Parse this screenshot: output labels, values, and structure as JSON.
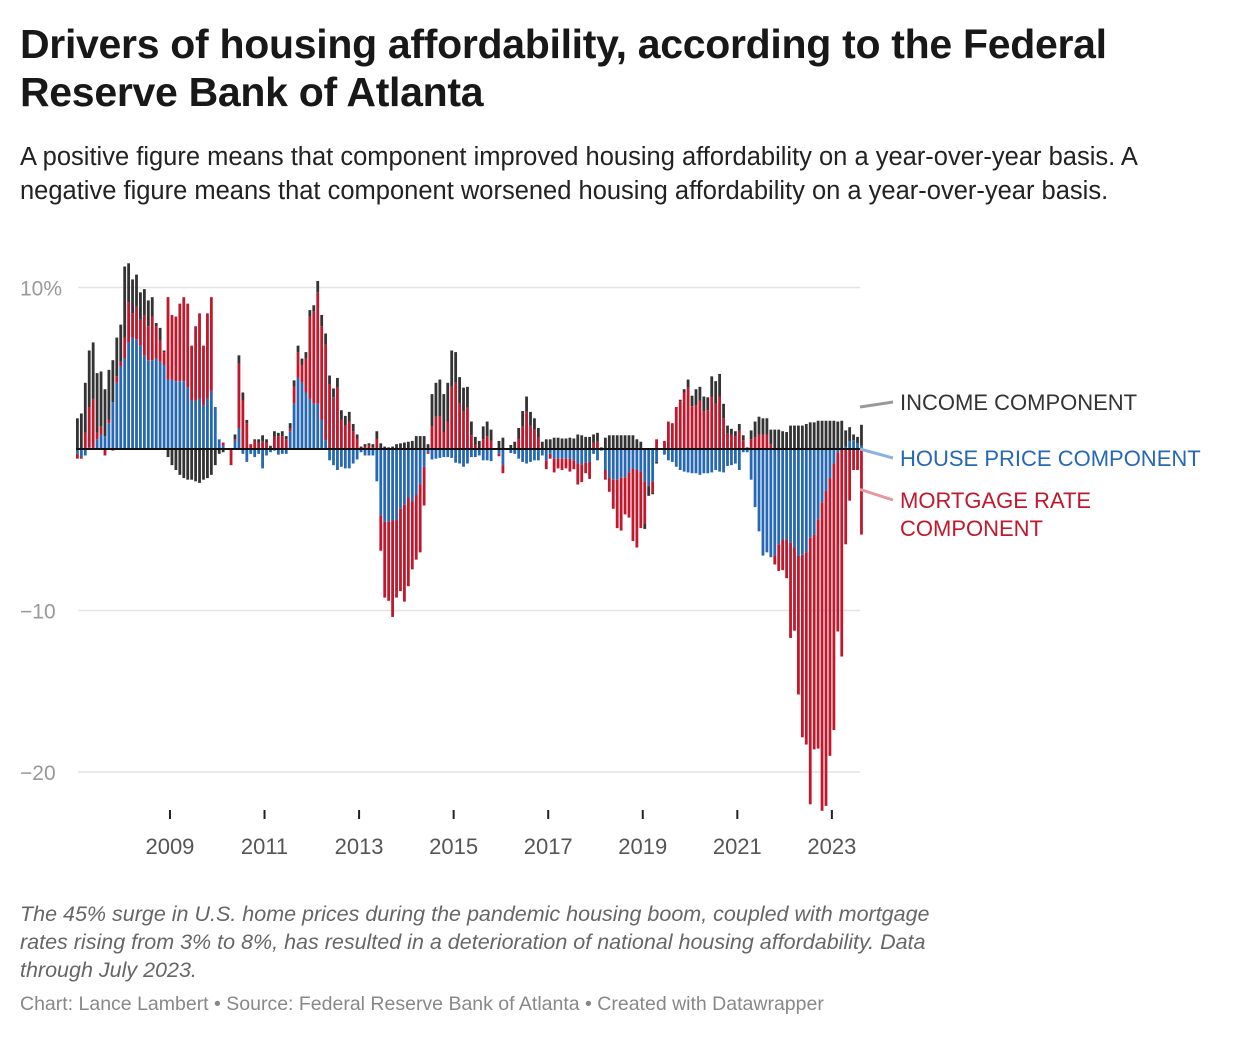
{
  "title": "Drivers of housing affordability, according to the Federal Reserve Bank of Atlanta",
  "subtitle": "A positive figure means that component improved housing affordability on a year-over-year basis. A negative figure means that component worsened housing affordability on a year-over-year basis.",
  "note": "The 45% surge in U.S. home prices during the pandemic housing boom, coupled with mortgage rates rising from 3% to 8%, has resulted in a deterioration of national housing affordability. Data through July 2023.",
  "byline": "Chart: Lance Lambert • Source: Federal Reserve Bank of Atlanta • Created with Datawrapper",
  "chart_data": {
    "type": "bar",
    "stacked": true,
    "period_start": "2007-01",
    "frequency": "monthly",
    "ylim": [
      -22.5,
      11.5
    ],
    "y_ticks": [
      {
        "value": 10,
        "label": "10%"
      },
      {
        "value": -10,
        "label": "−10"
      },
      {
        "value": -20,
        "label": "−20"
      }
    ],
    "x_ticks": [
      "2009",
      "2011",
      "2013",
      "2015",
      "2017",
      "2019",
      "2021",
      "2023"
    ],
    "grid": true,
    "legend_placement": "right (direct labels)",
    "series": [
      {
        "name": "HOUSE PRICE COMPONENT",
        "color": "#2668b4",
        "label_lines": [
          "HOUSE PRICE COMPONENT"
        ],
        "values": [
          -0.3,
          -0.5,
          -0.4,
          0.1,
          0,
          0.6,
          0.9,
          0.8,
          1.6,
          2.9,
          4.1,
          5.1,
          5.6,
          6.6,
          6.9,
          6.8,
          6.4,
          5.8,
          5.5,
          5.5,
          5.6,
          5.4,
          5.2,
          4.3,
          4.3,
          4.2,
          4.2,
          4.2,
          3.8,
          3.0,
          3.0,
          3.1,
          2.7,
          3.1,
          3.6,
          2.6,
          0.6,
          0.2,
          0,
          0,
          0.5,
          1.3,
          -0.3,
          -0.8,
          -0.3,
          -0.5,
          -0.3,
          -1.2,
          -0.4,
          -0.2,
          -0.1,
          -0.35,
          -0.3,
          -0.3,
          1.1,
          2.8,
          4.4,
          4.1,
          3.5,
          3.1,
          2.8,
          2.8,
          1.8,
          0.55,
          -0.7,
          -1.0,
          -1.3,
          -1.1,
          -1.2,
          -1.2,
          -0.9,
          -0.65,
          -0.2,
          -0.4,
          -0.4,
          -0.4,
          -2.0,
          -4.1,
          -4.5,
          -4.5,
          -4.4,
          -4.4,
          -3.7,
          -3.45,
          -3.0,
          -3.25,
          -2.85,
          -2.2,
          -1.1,
          -0.2,
          -0.65,
          -0.6,
          -0.55,
          -0.5,
          -0.5,
          -0.55,
          -0.85,
          -0.9,
          -1.1,
          -0.9,
          -0.5,
          -0.5,
          -0.4,
          -0.7,
          -0.7,
          -0.75,
          0,
          -0.3,
          -1.0,
          0,
          -0.25,
          -0.3,
          -0.6,
          -0.8,
          -0.9,
          -0.8,
          -0.7,
          -0.7,
          -0.4,
          -0.7,
          -0.3,
          -0.6,
          -0.6,
          -0.6,
          -0.6,
          -0.6,
          -0.7,
          -0.9,
          -0.95,
          -0.85,
          -0.8,
          -0.3,
          -0.7,
          -0.1,
          -1.3,
          -1.8,
          -1.9,
          -1.9,
          -1.75,
          -1.75,
          -1.45,
          -1.2,
          -1.3,
          -1.4,
          -2.0,
          -2.3,
          -2.0,
          -0.8,
          0,
          -0.35,
          -0.7,
          -0.8,
          -1.1,
          -1.3,
          -1.4,
          -1.45,
          -1.5,
          -1.5,
          -1.6,
          -1.5,
          -1.5,
          -1.45,
          -1.3,
          -1.4,
          -1.45,
          -1.05,
          -1.0,
          -0.9,
          -1.3,
          -0.2,
          -0.2,
          -1.9,
          -3.6,
          -5.1,
          -6.6,
          -6.4,
          -6.7,
          -6.6,
          -5.9,
          -5.6,
          -5.6,
          -5.8,
          -6.1,
          -6.6,
          -6.55,
          -6.4,
          -5.5,
          -5.3,
          -4.35,
          -3.3,
          -2.6,
          -1.8,
          -0.9,
          -0.2,
          0.05,
          0.15,
          0.5,
          0.55,
          0.35,
          0.2
        ]
      },
      {
        "name": "MORTGAGE RATE COMPONENT",
        "color": "#c0182d",
        "label_lines": [
          "MORTGAGE RATE",
          "COMPONENT"
        ],
        "values": [
          -0.3,
          -0.1,
          1.0,
          2.5,
          3.1,
          0.4,
          0.5,
          -0.4,
          0.2,
          -0.1,
          0.4,
          0.3,
          1.3,
          2.5,
          1.5,
          2.0,
          1.6,
          2.5,
          2.1,
          2.7,
          2.0,
          1.3,
          0.8,
          5.1,
          4.0,
          4.0,
          4.8,
          5.2,
          5.2,
          3.4,
          4.6,
          5.3,
          3.7,
          5.3,
          5.8,
          0,
          0,
          0.2,
          0,
          -1.0,
          0.1,
          4.0,
          3.0,
          1.6,
          0.3,
          0.5,
          0.4,
          0.45,
          0.4,
          0,
          0.75,
          0.8,
          0.8,
          0.6,
          0.15,
          1.1,
          1.6,
          1.1,
          2.1,
          5.1,
          5.7,
          6.9,
          5.8,
          5.9,
          4.0,
          3.2,
          3.8,
          1.8,
          1.45,
          1.7,
          1.1,
          0.65,
          0,
          0.15,
          0.2,
          0.1,
          0.65,
          -2.2,
          -4.7,
          -4.9,
          -6.0,
          -4.8,
          -5.1,
          -6.0,
          -5.5,
          -4.2,
          -4.0,
          -4.2,
          -2.4,
          -0.1,
          1.4,
          2.0,
          2.0,
          1.05,
          1.7,
          3.85,
          4.1,
          2.85,
          2.35,
          2.6,
          0.85,
          0.25,
          0,
          0.6,
          0.8,
          0.5,
          0,
          -0.15,
          -0.5,
          0,
          0,
          0,
          0.65,
          1.4,
          2.3,
          1.45,
          1.2,
          0.7,
          0,
          -0.55,
          -0.3,
          -0.85,
          -0.6,
          -0.7,
          -0.6,
          -0.8,
          -0.55,
          -1.3,
          -1.1,
          -0.65,
          -1.05,
          0.4,
          0.45,
          0,
          -0.6,
          -0.85,
          -1.8,
          -3.0,
          -3.3,
          -2.3,
          -2.8,
          -4.5,
          -4.8,
          -3.5,
          -2.6,
          0,
          -0.7,
          0.6,
          0,
          0.5,
          1.7,
          1.6,
          2.6,
          2.95,
          3.5,
          3.8,
          2.65,
          2.7,
          3.0,
          2.35,
          2.4,
          3.25,
          2.8,
          3.25,
          1.9,
          0.95,
          0.9,
          0.8,
          1.15,
          0.55,
          0,
          0.6,
          0.7,
          0.9,
          0.9,
          0.9,
          0.3,
          -0.55,
          -1.65,
          -1.9,
          -2.4,
          -5.9,
          -5.15,
          -8.6,
          -11.3,
          -11.9,
          -16.5,
          -13.3,
          -14.2,
          -19.1,
          -19.5,
          -17.2,
          -16.5,
          -11.1,
          -12.85,
          -5.9,
          -3.2,
          -1.3,
          -1.3,
          -5.3
        ]
      },
      {
        "name": "INCOME COMPONENT",
        "color": "#333333",
        "label_lines": [
          "INCOME COMPONENT"
        ],
        "values": [
          1.9,
          2.2,
          3.1,
          3.5,
          3.5,
          3.7,
          3.4,
          2.9,
          3.1,
          2.6,
          2.4,
          2.3,
          4.4,
          2.4,
          2.1,
          2.0,
          1.7,
          1.6,
          1.6,
          1.2,
          0.2,
          0.8,
          0.1,
          -0.5,
          -1.0,
          -1.3,
          -1.6,
          -1.8,
          -1.9,
          -1.9,
          -2.0,
          -2.1,
          -1.9,
          -1.8,
          -1.6,
          -1.0,
          -0.3,
          -0.2,
          0,
          0,
          0.3,
          0.5,
          0.5,
          0.2,
          0,
          0.1,
          0.2,
          0.4,
          0.2,
          0.2,
          0.35,
          0.2,
          0.3,
          0.2,
          0.35,
          0.35,
          0.4,
          0.4,
          0.4,
          0.4,
          0.4,
          0.7,
          0.7,
          0.7,
          0.55,
          0.55,
          0.6,
          0.6,
          0.6,
          0.6,
          0.45,
          0.25,
          0.15,
          0.15,
          0.15,
          0.2,
          0.45,
          0.35,
          0.15,
          0.1,
          0.15,
          0.3,
          0.35,
          0.4,
          0.45,
          0.5,
          0.8,
          0.8,
          0.8,
          0.3,
          2.0,
          2.1,
          2.3,
          2.35,
          2.4,
          2.25,
          1.9,
          1.6,
          1.45,
          1.25,
          0.85,
          0.5,
          0.5,
          0.8,
          0.9,
          0.7,
          0,
          0.5,
          0.7,
          0,
          0.25,
          0.45,
          0.65,
          0.95,
          0.95,
          0.85,
          0.7,
          0.6,
          0.45,
          0.6,
          0.6,
          0.7,
          0.7,
          0.65,
          0.65,
          0.7,
          0.65,
          0.9,
          0.85,
          0.75,
          0.75,
          0.5,
          0.55,
          0.1,
          0.7,
          0.85,
          0.85,
          0.85,
          0.85,
          0.85,
          0.85,
          0.85,
          0.6,
          0.45,
          -0.35,
          -0.6,
          -0.1,
          -0.1,
          0,
          0,
          0,
          0,
          0,
          0.1,
          0.2,
          0.5,
          0.65,
          1.0,
          0.85,
          0.9,
          0.8,
          1.25,
          1.4,
          1.4,
          0.9,
          0.5,
          0.35,
          0.3,
          0.4,
          0.3,
          0.1,
          0.55,
          1.0,
          1.1,
          1.0,
          1.0,
          0.9,
          1.2,
          1.2,
          1.1,
          1.05,
          1.45,
          1.45,
          1.45,
          1.45,
          1.55,
          1.65,
          1.65,
          1.75,
          1.75,
          1.75,
          1.75,
          1.75,
          1.7,
          1.7,
          1.0,
          0.85,
          0.35,
          0.4,
          1.3
        ]
      }
    ]
  }
}
